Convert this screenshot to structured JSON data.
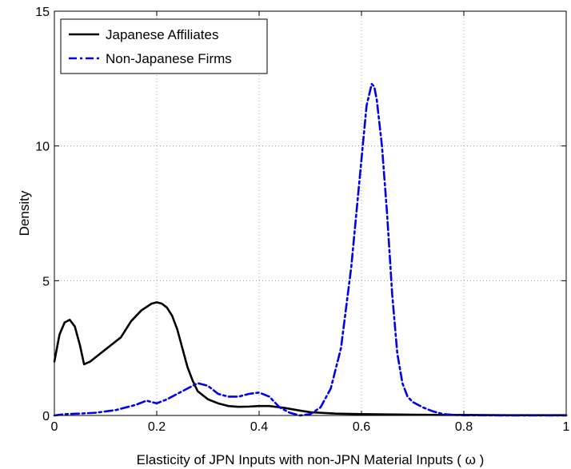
{
  "chart_data": {
    "type": "line",
    "title": "",
    "xlabel": "Elasticity of JPN Inputs with non-JPN Material Inputs ( ω )",
    "ylabel": "Density",
    "xlim": [
      0,
      1
    ],
    "ylim": [
      0,
      15
    ],
    "x_ticks": [
      0,
      0.2,
      0.4,
      0.6,
      0.8,
      1
    ],
    "x_tick_labels": [
      "0",
      "0.2",
      "0.4",
      "0.6",
      "0.8",
      "1"
    ],
    "y_ticks": [
      0,
      5,
      10,
      15
    ],
    "y_tick_labels": [
      "0",
      "5",
      "10",
      "15"
    ],
    "grid": true,
    "legend_position": "top-left",
    "series": [
      {
        "name": "Japanese Affiliates",
        "color": "#000000",
        "style": "solid",
        "x": [
          0,
          0.01,
          0.02,
          0.03,
          0.04,
          0.05,
          0.058,
          0.07,
          0.09,
          0.11,
          0.13,
          0.15,
          0.17,
          0.19,
          0.2,
          0.21,
          0.22,
          0.23,
          0.24,
          0.25,
          0.26,
          0.27,
          0.28,
          0.3,
          0.32,
          0.34,
          0.36,
          0.38,
          0.4,
          0.42,
          0.45,
          0.48,
          0.5,
          0.55,
          0.6,
          0.65,
          0.7,
          0.75,
          0.8,
          0.9,
          1.0
        ],
        "y": [
          2.0,
          3.0,
          3.45,
          3.55,
          3.3,
          2.6,
          1.9,
          2.0,
          2.3,
          2.6,
          2.9,
          3.5,
          3.9,
          4.15,
          4.2,
          4.15,
          4.0,
          3.7,
          3.2,
          2.5,
          1.8,
          1.3,
          0.9,
          0.6,
          0.45,
          0.35,
          0.32,
          0.33,
          0.35,
          0.35,
          0.28,
          0.18,
          0.12,
          0.07,
          0.05,
          0.04,
          0.03,
          0.02,
          0.02,
          0.01,
          0.01
        ]
      },
      {
        "name": "Non-Japanese Firms",
        "color": "#0000ee",
        "style": "dash-dot",
        "x": [
          0,
          0.02,
          0.05,
          0.08,
          0.1,
          0.12,
          0.14,
          0.16,
          0.18,
          0.2,
          0.22,
          0.24,
          0.26,
          0.28,
          0.3,
          0.32,
          0.34,
          0.36,
          0.38,
          0.4,
          0.42,
          0.44,
          0.46,
          0.48,
          0.5,
          0.52,
          0.54,
          0.56,
          0.58,
          0.6,
          0.61,
          0.62,
          0.625,
          0.63,
          0.64,
          0.65,
          0.66,
          0.67,
          0.68,
          0.69,
          0.7,
          0.72,
          0.74,
          0.76,
          0.78,
          0.8,
          0.9,
          1.0
        ],
        "y": [
          0.0,
          0.05,
          0.07,
          0.1,
          0.15,
          0.2,
          0.3,
          0.4,
          0.55,
          0.45,
          0.6,
          0.8,
          1.0,
          1.2,
          1.1,
          0.8,
          0.7,
          0.7,
          0.8,
          0.85,
          0.7,
          0.3,
          0.1,
          0.0,
          0.05,
          0.3,
          1.0,
          2.5,
          5.5,
          9.5,
          11.5,
          12.3,
          12.2,
          11.7,
          10.0,
          7.5,
          4.5,
          2.3,
          1.2,
          0.7,
          0.5,
          0.3,
          0.15,
          0.05,
          0.02,
          0.01,
          0.0,
          0.0
        ]
      }
    ]
  }
}
